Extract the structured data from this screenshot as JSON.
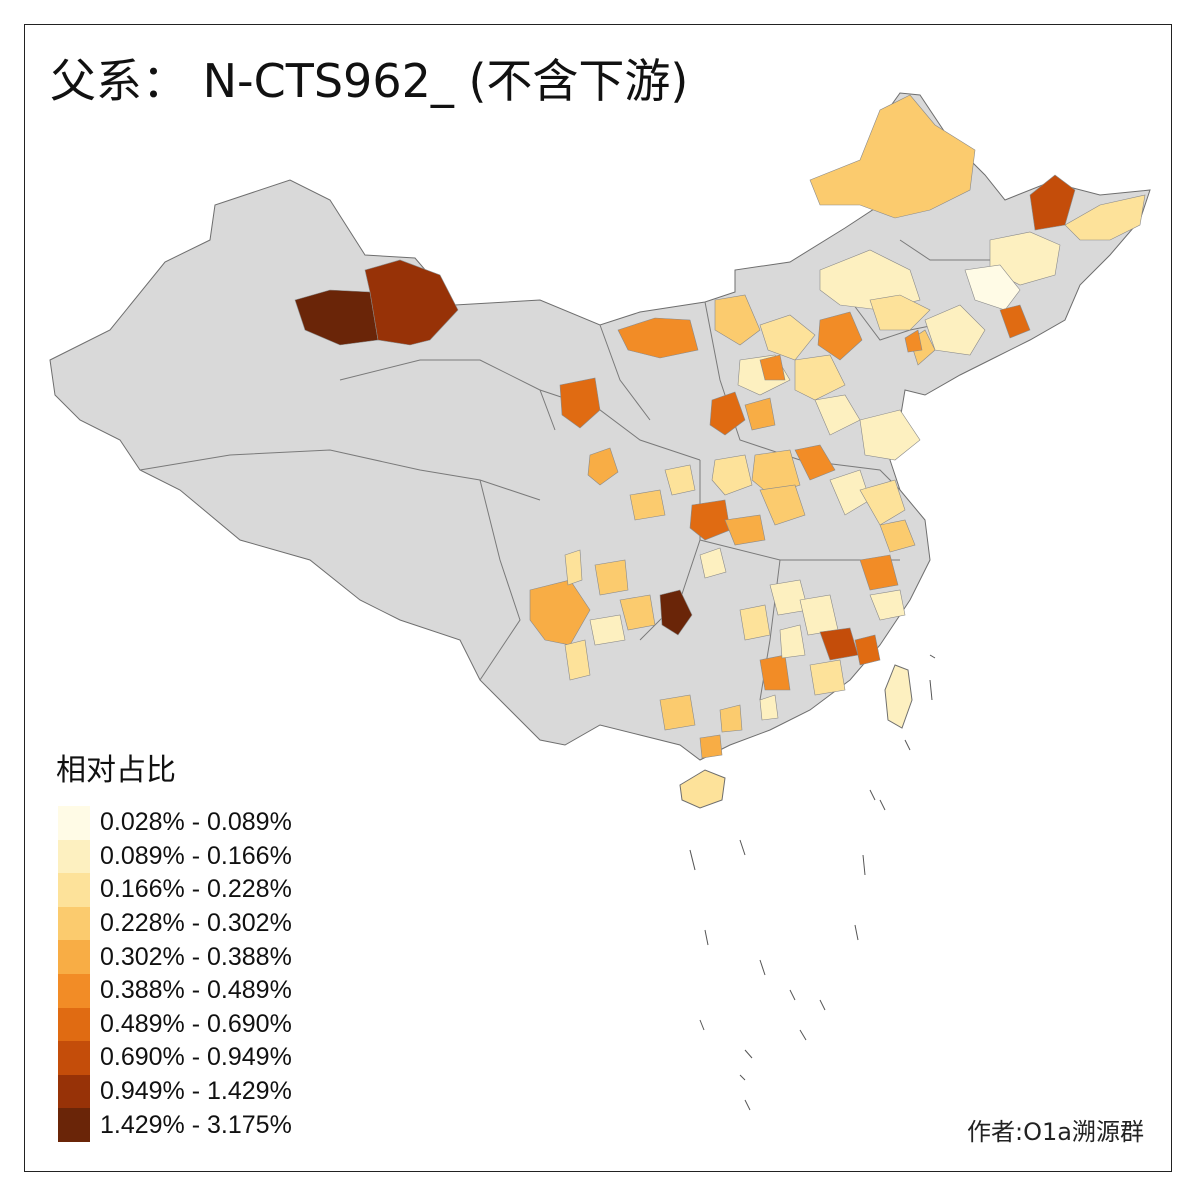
{
  "title": "父系： N-CTS962_ (不含下游)",
  "legend": {
    "title": "相对占比",
    "classes": [
      {
        "label": "0.028% - 0.089%",
        "color": "#fffbe6"
      },
      {
        "label": "0.089% - 0.166%",
        "color": "#fdf0c0"
      },
      {
        "label": "0.166% - 0.228%",
        "color": "#fde29a"
      },
      {
        "label": "0.228% - 0.302%",
        "color": "#fbcb6e"
      },
      {
        "label": "0.302% - 0.388%",
        "color": "#f8ad45"
      },
      {
        "label": "0.388% - 0.489%",
        "color": "#f28c26"
      },
      {
        "label": "0.489% - 0.690%",
        "color": "#e06b12"
      },
      {
        "label": "0.690% - 0.949%",
        "color": "#c44d0a"
      },
      {
        "label": "0.949% - 1.429%",
        "color": "#973207"
      },
      {
        "label": "1.429% - 3.175%",
        "color": "#6a2508"
      }
    ]
  },
  "credit": "作者:O1a溯源群",
  "colors": {
    "no_data": "#d9d9d9",
    "border": "#6e6e6e"
  }
}
